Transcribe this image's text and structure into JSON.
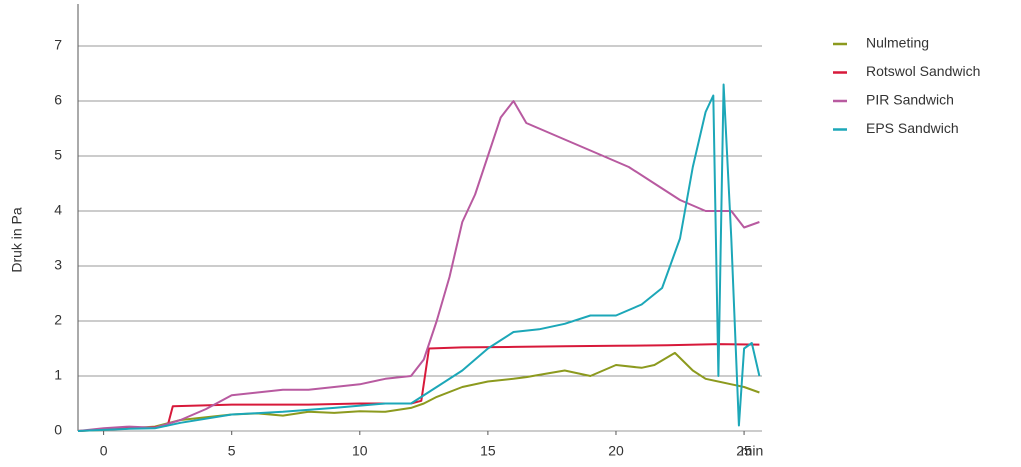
{
  "chart_data": {
    "type": "line",
    "y_label": "Druk in Pa",
    "x_label": "min",
    "xlim": [
      -1,
      25.7
    ],
    "ylim": [
      0,
      7.8
    ],
    "xticks": [
      0,
      5,
      10,
      15,
      20,
      25
    ],
    "yticks": [
      0,
      1,
      2,
      3,
      4,
      5,
      6,
      7
    ],
    "grid": true,
    "legend": "right",
    "series": [
      {
        "name": "Nulmeting",
        "color": "#8c9a1e",
        "x": [
          -1,
          0,
          1,
          2,
          3,
          4,
          5,
          6,
          7,
          8,
          9,
          10,
          11,
          12,
          12.5,
          13,
          14,
          15,
          16,
          16.5,
          17,
          18,
          19,
          20,
          21,
          21.5,
          22.3,
          23,
          23.5,
          24.5,
          25,
          25.6
        ],
        "values": [
          0,
          0.02,
          0.05,
          0.08,
          0.2,
          0.25,
          0.3,
          0.32,
          0.28,
          0.35,
          0.33,
          0.36,
          0.35,
          0.42,
          0.5,
          0.62,
          0.8,
          0.9,
          0.95,
          0.98,
          1.02,
          1.1,
          1.0,
          1.2,
          1.15,
          1.2,
          1.42,
          1.1,
          0.95,
          0.85,
          0.8,
          0.7
        ]
      },
      {
        "name": "Rotswol Sandwich",
        "color": "#d7193a",
        "x": [
          -1,
          0,
          1,
          2,
          2.5,
          2.7,
          5,
          8,
          10,
          12,
          12.4,
          12.7,
          14,
          16,
          18,
          20,
          22,
          24,
          25.6
        ],
        "values": [
          0,
          0.03,
          0.05,
          0.07,
          0.1,
          0.45,
          0.48,
          0.48,
          0.5,
          0.5,
          0.55,
          1.5,
          1.52,
          1.53,
          1.54,
          1.55,
          1.56,
          1.58,
          1.57
        ]
      },
      {
        "name": "PIR Sandwich",
        "color": "#b85aa0",
        "x": [
          -1,
          0,
          1,
          2,
          3,
          4,
          5,
          6,
          7,
          8,
          9,
          10,
          11,
          12,
          12.5,
          13,
          13.5,
          14,
          14.5,
          15,
          15.5,
          16,
          16.5,
          17,
          18,
          19,
          19.5,
          20.5,
          21.5,
          22.5,
          23.5,
          24.5,
          25,
          25.6
        ],
        "values": [
          0,
          0.05,
          0.08,
          0.06,
          0.2,
          0.4,
          0.65,
          0.7,
          0.75,
          0.75,
          0.8,
          0.85,
          0.95,
          1.0,
          1.3,
          2.0,
          2.8,
          3.8,
          4.3,
          5.0,
          5.7,
          6.0,
          5.6,
          5.5,
          5.3,
          5.1,
          5.0,
          4.8,
          4.5,
          4.2,
          4.0,
          4.0,
          3.7,
          3.8
        ]
      },
      {
        "name": "EPS Sandwich",
        "color": "#1ca7b8",
        "x": [
          -1,
          0,
          1,
          2,
          3,
          5,
          7,
          9,
          11,
          12,
          13,
          14,
          15,
          16,
          17,
          18,
          19,
          20,
          21,
          21.8,
          22.5,
          23,
          23.5,
          23.8,
          24,
          24.2,
          24.5,
          24.8,
          25,
          25.3,
          25.6
        ],
        "values": [
          0,
          0.02,
          0.04,
          0.05,
          0.15,
          0.3,
          0.35,
          0.42,
          0.5,
          0.5,
          0.8,
          1.1,
          1.5,
          1.8,
          1.85,
          1.95,
          2.1,
          2.1,
          2.3,
          2.6,
          3.5,
          4.8,
          5.8,
          6.1,
          1.0,
          6.3,
          3.5,
          0.1,
          1.5,
          1.6,
          1.0
        ]
      }
    ]
  }
}
